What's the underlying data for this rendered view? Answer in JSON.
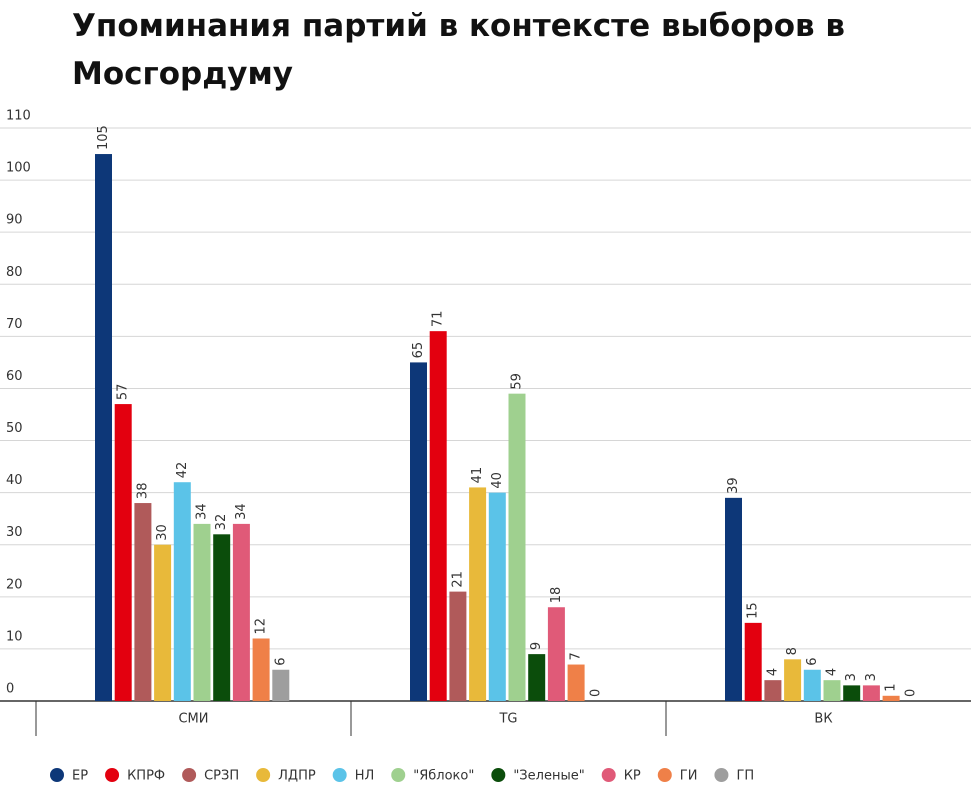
{
  "chart_data": {
    "type": "bar",
    "title": "Упоминания партий в контексте выборов в Мосгордуму",
    "categories": [
      "СМИ",
      "TG",
      "ВК"
    ],
    "series": [
      {
        "name": "ЕР",
        "color": "#0d3778",
        "values": [
          105,
          65,
          39
        ]
      },
      {
        "name": "КПРФ",
        "color": "#e3000f",
        "values": [
          57,
          71,
          15
        ]
      },
      {
        "name": "СРЗП",
        "color": "#b05a5a",
        "values": [
          38,
          21,
          4
        ]
      },
      {
        "name": "ЛДПР",
        "color": "#e8b93a",
        "values": [
          30,
          41,
          8
        ]
      },
      {
        "name": "НЛ",
        "color": "#5bc3e8",
        "values": [
          42,
          40,
          6
        ]
      },
      {
        "name": "\"Яблоко\"",
        "color": "#9fd08f",
        "values": [
          34,
          59,
          4
        ]
      },
      {
        "name": "\"Зеленые\"",
        "color": "#0b4d0b",
        "values": [
          32,
          9,
          3
        ]
      },
      {
        "name": "КР",
        "color": "#e05a78",
        "values": [
          34,
          18,
          3
        ]
      },
      {
        "name": "ГИ",
        "color": "#ef8048",
        "values": [
          12,
          7,
          1
        ]
      },
      {
        "name": "ГП",
        "color": "#9e9e9e",
        "values": [
          6,
          0,
          0
        ]
      }
    ],
    "ylim": [
      0,
      110
    ],
    "yticks": [
      0,
      10,
      20,
      30,
      40,
      50,
      60,
      70,
      80,
      90,
      100,
      110
    ],
    "grid": true,
    "legend": "bottom"
  }
}
